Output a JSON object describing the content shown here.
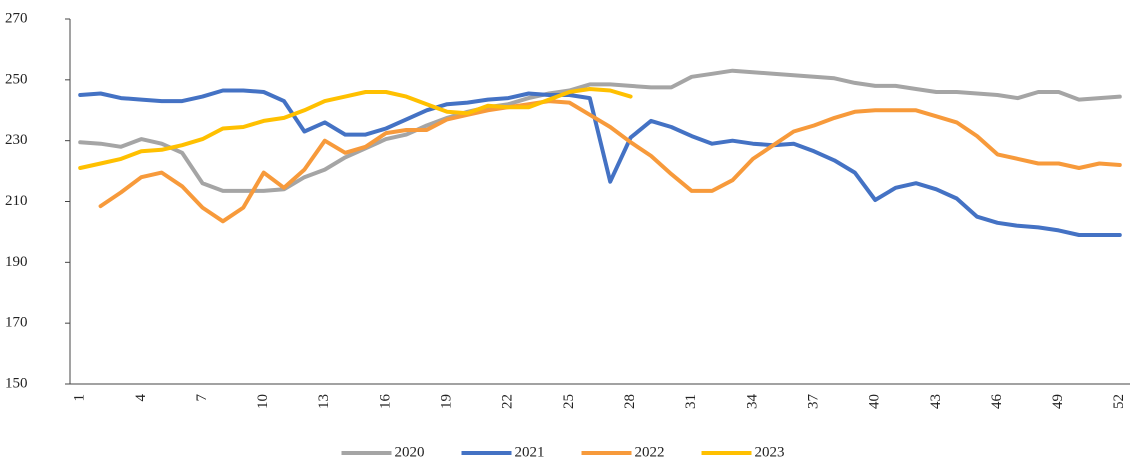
{
  "chart_data": {
    "type": "line",
    "categories": [
      1,
      null,
      null,
      4,
      null,
      null,
      7,
      null,
      null,
      10,
      null,
      null,
      13,
      null,
      null,
      16,
      null,
      null,
      19,
      null,
      null,
      22,
      null,
      null,
      25,
      null,
      null,
      28,
      null,
      null,
      31,
      null,
      null,
      34,
      null,
      null,
      37,
      null,
      null,
      40,
      null,
      null,
      43,
      null,
      null,
      46,
      null,
      null,
      49,
      null,
      null,
      52
    ],
    "series": [
      {
        "name": "2020",
        "color": "#a5a5a5",
        "values": [
          229.5,
          229,
          228,
          230.5,
          229,
          226,
          216,
          213.5,
          213.5,
          213.5,
          214,
          218,
          220.5,
          224.5,
          227.5,
          230.5,
          232,
          235,
          237.5,
          239.5,
          241,
          242,
          244,
          245.5,
          246.5,
          248.5,
          248.5,
          248,
          247.5,
          247.5,
          251,
          252,
          253,
          252.5,
          252,
          251.5,
          251,
          250.5,
          249,
          248,
          248,
          247,
          246,
          246,
          245.5,
          245,
          244,
          246,
          246,
          243.5,
          244,
          244.5
        ]
      },
      {
        "name": "2021",
        "color": "#4472c4",
        "values": [
          245,
          245.5,
          244,
          243.5,
          243,
          243,
          244.5,
          246.5,
          246.5,
          246,
          243,
          233,
          236,
          232,
          232,
          234,
          237,
          240,
          242,
          242.5,
          243.5,
          244,
          245.5,
          245,
          245,
          244,
          216.5,
          231,
          236.5,
          234.5,
          231.5,
          229,
          230,
          229,
          228.5,
          229,
          226.5,
          223.5,
          219.5,
          210.5,
          214.5,
          216,
          214,
          211,
          205,
          203,
          202,
          201.5,
          200.5,
          199,
          199,
          199
        ]
      },
      {
        "name": "2022",
        "color": "#f79a3b",
        "values": [
          null,
          208.5,
          213,
          218,
          219.5,
          215,
          208,
          203.5,
          208,
          219.5,
          214.5,
          220.5,
          230,
          226,
          228,
          232.5,
          233.5,
          233.5,
          237,
          238.5,
          240,
          241,
          242,
          243,
          242.5,
          238.5,
          234.5,
          229.5,
          225,
          219,
          213.5,
          213.5,
          217,
          224,
          228.5,
          233,
          235,
          237.5,
          239.5,
          240,
          240,
          240,
          238,
          236,
          231.5,
          225.5,
          224,
          222.5,
          222.5,
          221,
          222.5,
          222
        ]
      },
      {
        "name": "2023",
        "color": "#ffc000",
        "values": [
          221,
          222.5,
          224,
          226.5,
          227,
          228.5,
          230.5,
          234,
          234.5,
          236.5,
          237.5,
          240,
          243,
          244.5,
          246,
          246,
          244.5,
          242,
          239.5,
          239,
          241.5,
          241,
          241,
          243.5,
          246,
          247,
          246.5,
          244.5,
          null,
          null,
          null,
          null,
          null,
          null,
          null,
          null,
          null,
          null,
          null,
          null,
          null,
          null,
          null,
          null,
          null,
          null,
          null,
          null,
          null,
          null,
          null,
          null
        ]
      }
    ],
    "ylim": [
      150,
      270
    ],
    "yticks": [
      150,
      170,
      190,
      210,
      230,
      250,
      270
    ],
    "grid": false,
    "legend": "bottom"
  }
}
